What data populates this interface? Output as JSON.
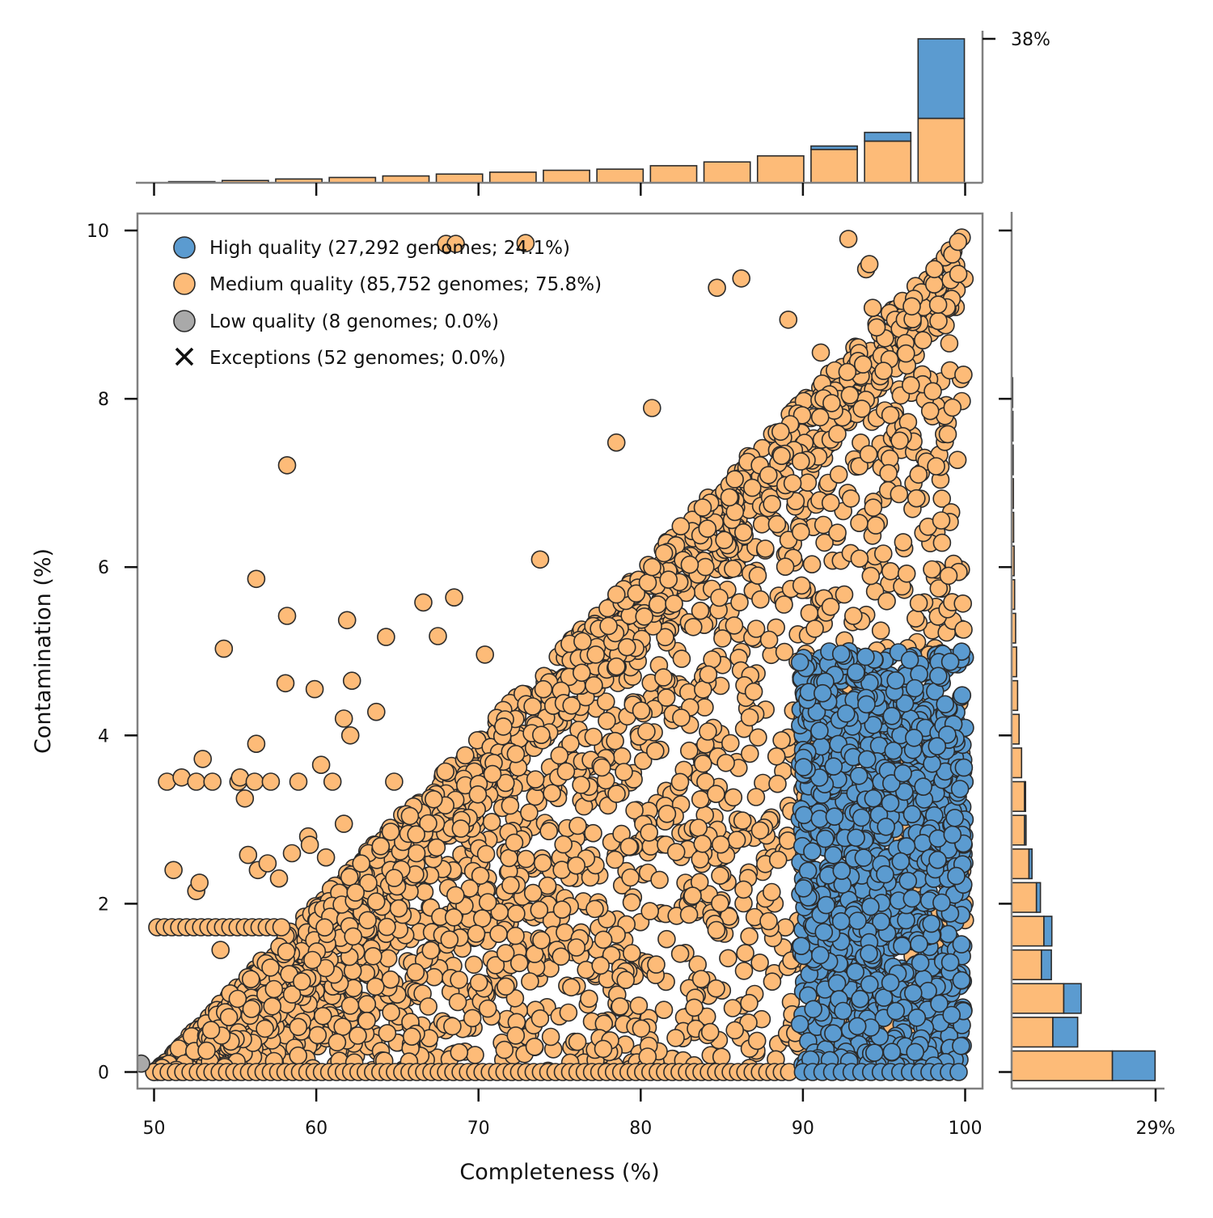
{
  "chart_data": {
    "type": "scatter",
    "xlabel": "Completeness (%)",
    "ylabel": "Contamination (%)",
    "xlim": [
      49,
      101
    ],
    "ylim": [
      -0.2,
      10.2
    ],
    "x_ticks": [
      "50",
      "60",
      "70",
      "80",
      "90",
      "100"
    ],
    "y_ticks": [
      "0",
      "2",
      "4",
      "6",
      "8",
      "10"
    ],
    "colors": {
      "high": "#5b9bd0",
      "medium": "#fdbb78",
      "low": "#a9a9a9",
      "exception": "#111111",
      "edge": "#2b2b2b",
      "spine": "#808080"
    },
    "legend": {
      "placement": "upper-left",
      "entries": [
        {
          "key": "high",
          "marker": "circle",
          "label": "High quality (27,292 genomes; 24.1%)"
        },
        {
          "key": "medium",
          "marker": "circle",
          "label": "Medium quality (85,752 genomes; 75.8%)"
        },
        {
          "key": "low",
          "marker": "circle",
          "label": "Low quality (8 genomes; 0.0%)"
        },
        {
          "key": "exception",
          "marker": "x",
          "label": "Exceptions (52 genomes; 0.0%)"
        }
      ]
    },
    "series": [
      {
        "key": "medium",
        "regions": [
          {
            "shape": "triangle",
            "x_min": 50,
            "x_max": 100,
            "y_floor": 0,
            "y_ceiling_at_x_min": 0,
            "y_ceiling_at_x_max": 10
          },
          {
            "shape": "band",
            "x_min": 89.5,
            "x_max": 100,
            "y_min": 5.0,
            "y_max": 10
          }
        ],
        "outliers": [
          [
            50.8,
            3.45
          ],
          [
            51.7,
            3.5
          ],
          [
            52.6,
            3.45
          ],
          [
            53.0,
            3.72
          ],
          [
            53.6,
            3.45
          ],
          [
            55.2,
            3.45
          ],
          [
            55.3,
            3.5
          ],
          [
            55.6,
            3.25
          ],
          [
            56.2,
            3.45
          ],
          [
            56.3,
            3.9
          ],
          [
            57.2,
            3.45
          ],
          [
            58.9,
            3.45
          ],
          [
            59.5,
            2.8
          ],
          [
            59.6,
            2.7
          ],
          [
            59.9,
            4.55
          ],
          [
            60.3,
            3.65
          ],
          [
            61.0,
            3.45
          ],
          [
            61.7,
            2.95
          ],
          [
            61.7,
            4.2
          ],
          [
            62.1,
            4.0
          ],
          [
            62.2,
            4.65
          ],
          [
            63.7,
            4.28
          ],
          [
            64.8,
            3.45
          ],
          [
            54.3,
            5.03
          ],
          [
            56.3,
            5.86
          ],
          [
            58.2,
            5.42
          ],
          [
            58.1,
            4.62
          ],
          [
            61.9,
            5.37
          ],
          [
            64.3,
            5.17
          ],
          [
            66.6,
            5.58
          ],
          [
            67.5,
            5.18
          ],
          [
            68.5,
            5.64
          ],
          [
            70.4,
            4.96
          ],
          [
            73.8,
            6.09
          ],
          [
            58.2,
            7.21
          ],
          [
            78.5,
            7.48
          ],
          [
            80.7,
            7.89
          ],
          [
            68.0,
            9.84
          ],
          [
            68.6,
            9.84
          ],
          [
            72.9,
            9.85
          ],
          [
            84.7,
            9.32
          ],
          [
            86.2,
            9.43
          ],
          [
            89.1,
            8.94
          ],
          [
            91.1,
            8.55
          ],
          [
            92.8,
            9.9
          ],
          [
            93.9,
            9.54
          ],
          [
            94.1,
            9.6
          ],
          [
            94.3,
            9.08
          ],
          [
            55.8,
            2.58
          ],
          [
            56.4,
            2.4
          ],
          [
            57.0,
            2.48
          ],
          [
            57.7,
            2.3
          ],
          [
            58.5,
            2.6
          ],
          [
            60.6,
            2.55
          ],
          [
            51.2,
            2.4
          ],
          [
            52.6,
            2.15
          ],
          [
            52.8,
            2.25
          ],
          [
            54.1,
            1.45
          ]
        ],
        "line_clusters": [
          {
            "y": 1.72,
            "x_min": 50.2,
            "x_max": 58.0
          },
          {
            "y": 0.0,
            "x_min": 50.0,
            "x_max": 89.5
          }
        ]
      },
      {
        "key": "high",
        "regions": [
          {
            "shape": "rectangle",
            "x_min": 89.8,
            "x_max": 100,
            "y_min": 0,
            "y_max": 5.0
          }
        ]
      },
      {
        "key": "low",
        "points": [
          [
            49.2,
            0.1
          ]
        ]
      }
    ],
    "marginal_x": {
      "unit": "percent of genomes",
      "max_label": "38%",
      "max_value": 38,
      "bin_width": 3.1,
      "bins": [
        {
          "x0": 50.9,
          "medium": 0.3,
          "high": 0
        },
        {
          "x0": 54.2,
          "medium": 0.6,
          "high": 0
        },
        {
          "x0": 57.5,
          "medium": 1.0,
          "high": 0
        },
        {
          "x0": 60.8,
          "medium": 1.4,
          "high": 0
        },
        {
          "x0": 64.1,
          "medium": 1.8,
          "high": 0
        },
        {
          "x0": 67.4,
          "medium": 2.3,
          "high": 0
        },
        {
          "x0": 70.7,
          "medium": 2.8,
          "high": 0
        },
        {
          "x0": 74.0,
          "medium": 3.3,
          "high": 0
        },
        {
          "x0": 77.3,
          "medium": 3.6,
          "high": 0
        },
        {
          "x0": 80.6,
          "medium": 4.5,
          "high": 0
        },
        {
          "x0": 83.9,
          "medium": 5.5,
          "high": 0
        },
        {
          "x0": 87.2,
          "medium": 7.1,
          "high": 0
        },
        {
          "x0": 90.5,
          "medium": 8.8,
          "high": 0.9
        },
        {
          "x0": 93.8,
          "medium": 11.0,
          "high": 2.3
        },
        {
          "x0": 97.1,
          "medium": 17.0,
          "high": 21.0
        }
      ]
    },
    "marginal_y": {
      "unit": "percent of genomes",
      "max_label": "29%",
      "max_value": 29,
      "bin_height": 0.4,
      "bins": [
        {
          "y0": -0.15,
          "medium": 20.3,
          "high": 8.6
        },
        {
          "y0": 0.25,
          "medium": 8.3,
          "high": 5.0
        },
        {
          "y0": 0.65,
          "medium": 10.5,
          "high": 3.5
        },
        {
          "y0": 1.05,
          "medium": 6.0,
          "high": 2.0
        },
        {
          "y0": 1.45,
          "medium": 6.5,
          "high": 1.6
        },
        {
          "y0": 1.85,
          "medium": 5.0,
          "high": 0.8
        },
        {
          "y0": 2.25,
          "medium": 3.5,
          "high": 0.6
        },
        {
          "y0": 2.65,
          "medium": 2.6,
          "high": 0.3
        },
        {
          "y0": 3.05,
          "medium": 2.6,
          "high": 0.2
        },
        {
          "y0": 3.45,
          "medium": 2.0,
          "high": 0
        },
        {
          "y0": 3.85,
          "medium": 1.5,
          "high": 0
        },
        {
          "y0": 4.25,
          "medium": 1.2,
          "high": 0
        },
        {
          "y0": 4.65,
          "medium": 1.0,
          "high": 0
        },
        {
          "y0": 5.05,
          "medium": 0.8,
          "high": 0
        },
        {
          "y0": 5.45,
          "medium": 0.6,
          "high": 0
        },
        {
          "y0": 5.85,
          "medium": 0.5,
          "high": 0
        },
        {
          "y0": 6.25,
          "medium": 0.4,
          "high": 0
        },
        {
          "y0": 6.65,
          "medium": 0.35,
          "high": 0
        },
        {
          "y0": 7.05,
          "medium": 0.3,
          "high": 0
        },
        {
          "y0": 7.45,
          "medium": 0.25,
          "high": 0
        },
        {
          "y0": 7.85,
          "medium": 0.2,
          "high": 0
        }
      ]
    }
  }
}
